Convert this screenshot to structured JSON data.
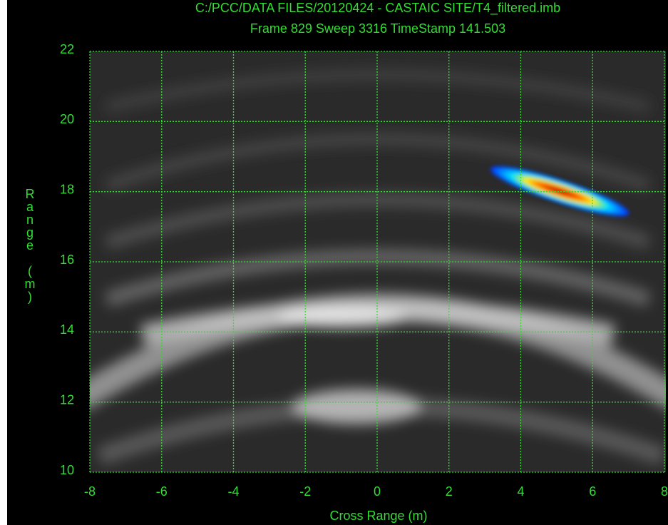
{
  "chart_data": {
    "type": "image",
    "title": "C:/PCC/DATA FILES/20120424 - CASTAIC SITE/T4_filtered.imb",
    "subtitle": "Frame 829 Sweep 3316 TimeStamp 141.503",
    "x_label": "Cross Range (m)",
    "y_label": "Range (m)",
    "xlim": [
      -8,
      8
    ],
    "xticks": [
      -8,
      -6,
      -4,
      -2,
      0,
      2,
      4,
      6,
      8
    ],
    "ylim": [
      10,
      22
    ],
    "yticks": [
      10,
      12,
      14,
      16,
      18,
      20,
      22
    ],
    "grid": true,
    "color": "#33dd33"
  }
}
